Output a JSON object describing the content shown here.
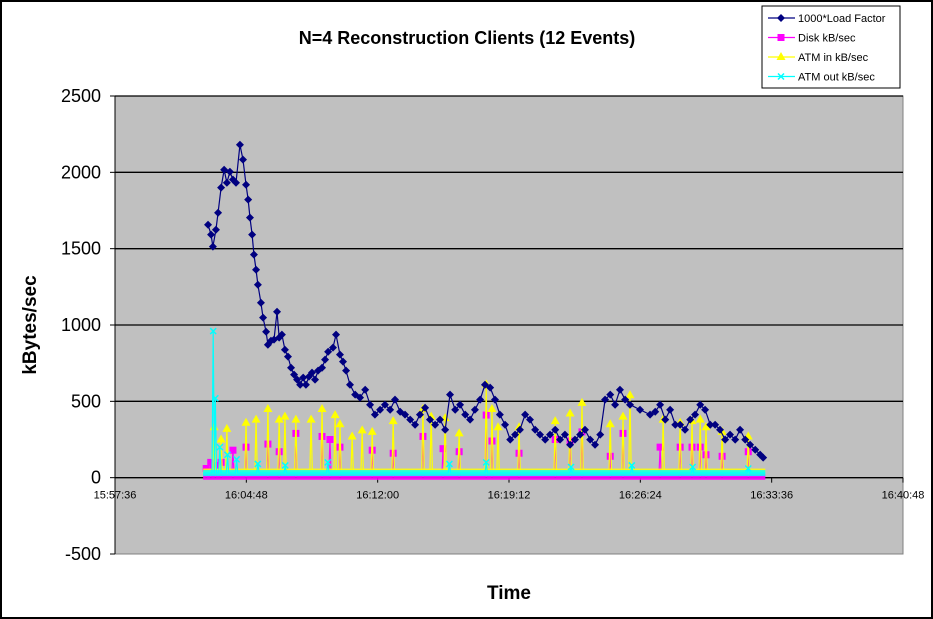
{
  "chart_data": {
    "type": "line",
    "title": "N=4 Reconstruction Clients (12 Events)",
    "xlabel": "Time",
    "ylabel": "kBytes/sec",
    "x_unit": "seconds after 15:57:36",
    "xlim": [
      0,
      2592
    ],
    "ylim": [
      -500,
      2500
    ],
    "yticks": [
      -500,
      0,
      500,
      1000,
      1500,
      2000,
      2500
    ],
    "xtick_values": [
      0,
      432,
      864,
      1296,
      1728,
      2160,
      2592
    ],
    "xtick_labels": [
      "15:57:36",
      "16:04:48",
      "16:12:00",
      "16:19:12",
      "16:26:24",
      "16:33:36",
      "16:40:48"
    ],
    "grid": "horizontal",
    "legend_position": "top-right",
    "series": [
      {
        "name": "1000*Load Factor",
        "color": "#000080",
        "marker": "diamond",
        "points": [
          [
            306,
            1657
          ],
          [
            316,
            1592
          ],
          [
            322,
            1513
          ],
          [
            332,
            1624
          ],
          [
            339,
            1735
          ],
          [
            349,
            1900
          ],
          [
            359,
            2017
          ],
          [
            368,
            1932
          ],
          [
            378,
            2004
          ],
          [
            388,
            1952
          ],
          [
            398,
            1932
          ],
          [
            411,
            2181
          ],
          [
            421,
            2083
          ],
          [
            431,
            1919
          ],
          [
            438,
            1821
          ],
          [
            444,
            1703
          ],
          [
            451,
            1592
          ],
          [
            457,
            1461
          ],
          [
            464,
            1362
          ],
          [
            470,
            1264
          ],
          [
            480,
            1146
          ],
          [
            487,
            1048
          ],
          [
            497,
            956
          ],
          [
            503,
            871
          ],
          [
            513,
            897
          ],
          [
            523,
            904
          ],
          [
            533,
            1087
          ],
          [
            540,
            917
          ],
          [
            549,
            937
          ],
          [
            559,
            838
          ],
          [
            569,
            793
          ],
          [
            579,
            720
          ],
          [
            589,
            675
          ],
          [
            599,
            642
          ],
          [
            609,
            609
          ],
          [
            619,
            655
          ],
          [
            628,
            609
          ],
          [
            638,
            662
          ],
          [
            648,
            688
          ],
          [
            658,
            642
          ],
          [
            668,
            701
          ],
          [
            681,
            720
          ],
          [
            691,
            773
          ],
          [
            701,
            825
          ],
          [
            717,
            852
          ],
          [
            727,
            937
          ],
          [
            740,
            806
          ],
          [
            750,
            760
          ],
          [
            760,
            701
          ],
          [
            773,
            609
          ],
          [
            790,
            544
          ],
          [
            806,
            524
          ],
          [
            823,
            576
          ],
          [
            839,
            478
          ],
          [
            855,
            413
          ],
          [
            872,
            445
          ],
          [
            888,
            478
          ],
          [
            905,
            445
          ],
          [
            921,
            511
          ],
          [
            938,
            432
          ],
          [
            954,
            413
          ],
          [
            971,
            380
          ],
          [
            987,
            347
          ],
          [
            1003,
            413
          ],
          [
            1020,
            458
          ],
          [
            1036,
            380
          ],
          [
            1053,
            347
          ],
          [
            1069,
            380
          ],
          [
            1086,
            314
          ],
          [
            1102,
            544
          ],
          [
            1119,
            445
          ],
          [
            1135,
            478
          ],
          [
            1152,
            413
          ],
          [
            1168,
            380
          ],
          [
            1184,
            445
          ],
          [
            1201,
            511
          ],
          [
            1217,
            609
          ],
          [
            1234,
            590
          ],
          [
            1250,
            511
          ],
          [
            1266,
            413
          ],
          [
            1283,
            347
          ],
          [
            1300,
            249
          ],
          [
            1316,
            282
          ],
          [
            1332,
            314
          ],
          [
            1349,
            413
          ],
          [
            1365,
            380
          ],
          [
            1382,
            314
          ],
          [
            1398,
            282
          ],
          [
            1415,
            249
          ],
          [
            1431,
            282
          ],
          [
            1448,
            314
          ],
          [
            1464,
            249
          ],
          [
            1480,
            282
          ],
          [
            1497,
            216
          ],
          [
            1513,
            249
          ],
          [
            1530,
            282
          ],
          [
            1546,
            314
          ],
          [
            1563,
            249
          ],
          [
            1579,
            216
          ],
          [
            1596,
            282
          ],
          [
            1612,
            511
          ],
          [
            1629,
            544
          ],
          [
            1645,
            478
          ],
          [
            1661,
            576
          ],
          [
            1678,
            511
          ],
          [
            1694,
            478
          ],
          [
            1727,
            445
          ],
          [
            1760,
            413
          ],
          [
            1777,
            432
          ],
          [
            1793,
            478
          ],
          [
            1810,
            380
          ],
          [
            1826,
            445
          ],
          [
            1843,
            347
          ],
          [
            1859,
            347
          ],
          [
            1875,
            314
          ],
          [
            1892,
            380
          ],
          [
            1908,
            413
          ],
          [
            1925,
            478
          ],
          [
            1941,
            445
          ],
          [
            1958,
            347
          ],
          [
            1974,
            347
          ],
          [
            1990,
            314
          ],
          [
            2007,
            249
          ],
          [
            2023,
            282
          ],
          [
            2040,
            249
          ],
          [
            2056,
            314
          ],
          [
            2073,
            249
          ],
          [
            2089,
            216
          ],
          [
            2106,
            183
          ],
          [
            2122,
            151
          ],
          [
            2132,
            131
          ]
        ]
      },
      {
        "name": "Disk kB/sec",
        "color": "#FF00FF",
        "marker": "square",
        "baseline": 5,
        "range": [
          290,
          2139
        ],
        "spikes": [
          [
            300,
            60
          ],
          [
            315,
            100
          ],
          [
            330,
            80
          ],
          [
            349,
            100
          ],
          [
            388,
            180
          ],
          [
            431,
            200
          ],
          [
            503,
            220
          ],
          [
            540,
            170
          ],
          [
            595,
            290
          ],
          [
            681,
            270
          ],
          [
            707,
            250
          ],
          [
            740,
            200
          ],
          [
            846,
            180
          ],
          [
            915,
            160
          ],
          [
            1013,
            270
          ],
          [
            1079,
            190
          ],
          [
            1132,
            170
          ],
          [
            1221,
            410
          ],
          [
            1240,
            240
          ],
          [
            1329,
            160
          ],
          [
            1448,
            250
          ],
          [
            1497,
            240
          ],
          [
            1536,
            300
          ],
          [
            1629,
            140
          ],
          [
            1671,
            290
          ],
          [
            1793,
            200
          ],
          [
            1859,
            200
          ],
          [
            1898,
            200
          ],
          [
            1925,
            200
          ],
          [
            1944,
            150
          ],
          [
            1997,
            140
          ],
          [
            2083,
            170
          ]
        ]
      },
      {
        "name": "ATM in kB/sec",
        "color": "#FFFF00",
        "marker": "triangle",
        "baseline": 40,
        "range": [
          290,
          2139
        ],
        "spikes": [
          [
            326,
            330
          ],
          [
            349,
            250
          ],
          [
            368,
            320
          ],
          [
            431,
            360
          ],
          [
            464,
            380
          ],
          [
            503,
            450
          ],
          [
            540,
            380
          ],
          [
            559,
            400
          ],
          [
            595,
            380
          ],
          [
            645,
            380
          ],
          [
            681,
            450
          ],
          [
            724,
            410
          ],
          [
            740,
            350
          ],
          [
            780,
            270
          ],
          [
            813,
            310
          ],
          [
            846,
            300
          ],
          [
            915,
            370
          ],
          [
            1013,
            450
          ],
          [
            1040,
            400
          ],
          [
            1086,
            390
          ],
          [
            1132,
            290
          ],
          [
            1221,
            610
          ],
          [
            1240,
            450
          ],
          [
            1260,
            330
          ],
          [
            1329,
            330
          ],
          [
            1448,
            370
          ],
          [
            1497,
            420
          ],
          [
            1536,
            490
          ],
          [
            1629,
            350
          ],
          [
            1671,
            400
          ],
          [
            1694,
            540
          ],
          [
            1803,
            380
          ],
          [
            1859,
            360
          ],
          [
            1898,
            370
          ],
          [
            1925,
            380
          ],
          [
            1944,
            330
          ],
          [
            1997,
            300
          ],
          [
            2083,
            270
          ]
        ]
      },
      {
        "name": "ATM out kB/sec",
        "color": "#00FFFF",
        "marker": "x",
        "baseline": 30,
        "range": [
          290,
          2139
        ],
        "spikes": [
          [
            323,
            960
          ],
          [
            330,
            520
          ],
          [
            345,
            200
          ],
          [
            370,
            150
          ],
          [
            400,
            120
          ],
          [
            470,
            90
          ],
          [
            560,
            80
          ],
          [
            700,
            100
          ],
          [
            1100,
            90
          ],
          [
            1221,
            100
          ],
          [
            1500,
            70
          ],
          [
            1700,
            80
          ],
          [
            1900,
            70
          ],
          [
            2083,
            60
          ]
        ]
      }
    ]
  }
}
